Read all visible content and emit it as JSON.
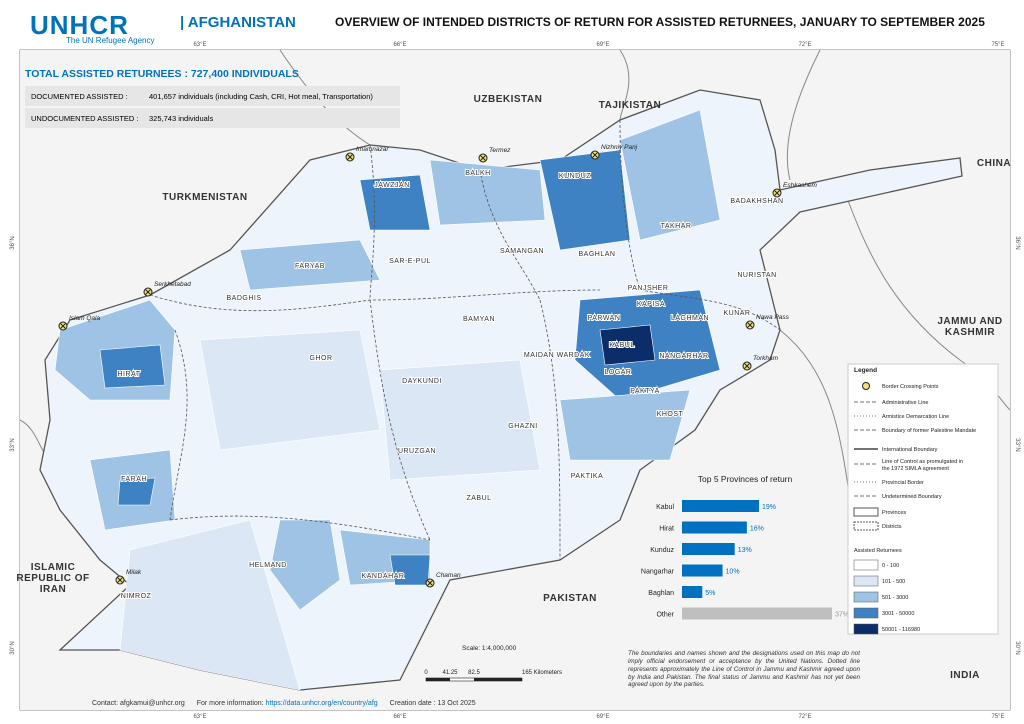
{
  "header": {
    "logo": "UNHCR",
    "logo_subtitle": "The UN Refugee Agency",
    "country": "| AFGHANISTAN",
    "title": "OVERVIEW OF INTENDED DISTRICTS OF RETURN FOR ASSISTED RETURNEES, JANUARY TO SEPTEMBER 2025"
  },
  "summary": {
    "total": "TOTAL ASSISTED RETURNEES : 727,400 INDIVIDUALS",
    "rows": [
      [
        "DOCUMENTED ASSISTED :",
        "401,657 individuals (including Cash, CRI, Hot meal, Transportation)"
      ],
      [
        "UNDOCUMENTED ASSISTED :",
        "325,743 individuals"
      ]
    ]
  },
  "graticule": {
    "longitudes": [
      "63°E",
      "66°E",
      "69°E",
      "72°E",
      "75°E"
    ],
    "latitudes": [
      "36°N",
      "33°N",
      "30°N"
    ]
  },
  "countries": [
    "TURKMENISTAN",
    "UZBEKISTAN",
    "TAJIKISTAN",
    "CHINA",
    "JAMMU AND KASHMIR",
    "ISLAMIC REPUBLIC OF IRAN",
    "PAKISTAN",
    "INDIA"
  ],
  "provinces": [
    "BALKH",
    "JAWZJAN",
    "KUNDUZ",
    "TAKHAR",
    "BADAKHSHAN",
    "SAMANGAN",
    "BAGHLAN",
    "FARYAB",
    "SAR-E-PUL",
    "BADGHIS",
    "PANJSHER",
    "NURISTAN",
    "KAPISA",
    "KUNAR",
    "PARWAN",
    "LAGHMAN",
    "KABUL",
    "NANGARHAR",
    "BAMYAN",
    "MAIDAN WARDAK",
    "LOGAR",
    "HIRAT",
    "GHOR",
    "DAYKUNDI",
    "PAKTYA",
    "KHOST",
    "GHAZNI",
    "URUZGAN",
    "PAKTIKA",
    "FARAH",
    "ZABUL",
    "HELMAND",
    "KANDAHAR",
    "NIMROZ"
  ],
  "border_points": [
    "Imamnazar",
    "Termez",
    "Nizhniy Panj",
    "Eshkashem",
    "Serkhetabad",
    "Islam Qala",
    "Nawa Pass",
    "Torkham",
    "Chaman",
    "Milak"
  ],
  "chart": {
    "type": "bar",
    "title": "Top 5 Provinces of return",
    "categories": [
      "Kabul",
      "Hirat",
      "Kunduz",
      "Nangarhar",
      "Baghlan",
      "Other"
    ],
    "values": [
      19,
      16,
      13,
      10,
      5,
      37
    ],
    "value_labels": [
      "19%",
      "16%",
      "13%",
      "10%",
      "5%",
      "37%"
    ],
    "colors": [
      "#0070c0",
      "#0070c0",
      "#0070c0",
      "#0070c0",
      "#0070c0",
      "#bfbfbf"
    ]
  },
  "legend": {
    "title": "Legend",
    "items": [
      "Border Crossing Points",
      "Administrative Line",
      "Armistice Demarcation Line",
      "Boundary of former Palestine Mandate",
      "International Boundary",
      "Line of Control as promulgated in the 1972 SIMLA agreement",
      "Provincial Border",
      "Undetermined Boundary",
      "Provinces",
      "Districts"
    ],
    "classes_title": "Assisted Returnees",
    "classes": [
      "0 - 100",
      "101 - 500",
      "501 - 3000",
      "3001 - 50000",
      "50001 - 116980"
    ],
    "class_colors": [
      "#ffffff",
      "#dbe7f4",
      "#9ec3e4",
      "#3f82c4",
      "#0b2e6a"
    ]
  },
  "scale": {
    "label": "Scale: 1:4,000,000",
    "ticks": [
      "0",
      "41.25",
      "82.5",
      "165 Kilometers"
    ]
  },
  "disclaimer": "The boundaries and names shown and the designations used on this map do not imply official endorsement or acceptance by the United Nations. Dotted line represents approximately the Line of Control in Jammu and Kashmir agreed upon by India and Pakistan. The final status of Jammu and Kashmir has not yet been agreed upon by the parties.",
  "footer": {
    "contact": "Contact: afgkamui@unhcr.org",
    "info_label": "For more information:",
    "info_link": "https://data.unhcr.org/en/country/afg",
    "date": "Creation date :  13 Oct 2025"
  }
}
